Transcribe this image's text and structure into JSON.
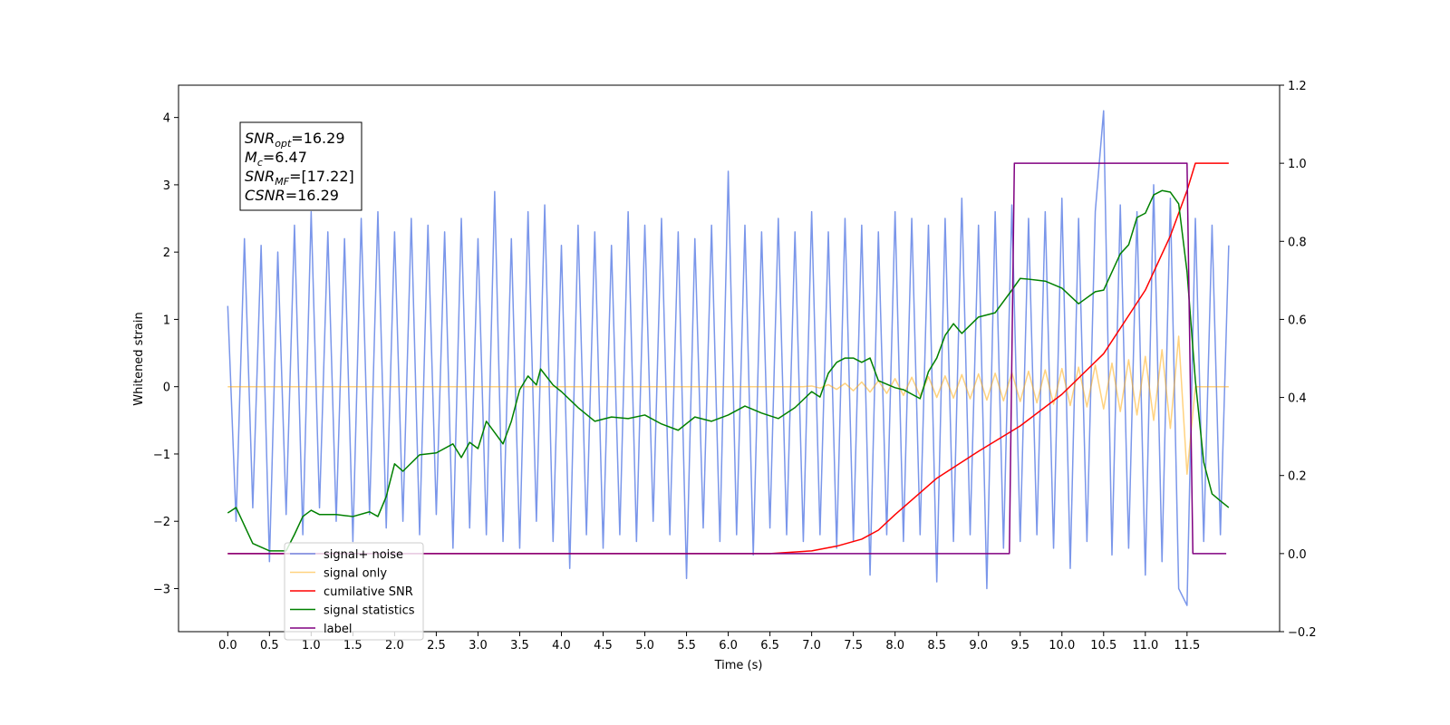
{
  "chart_data": {
    "type": "line",
    "xlabel": "Time (s)",
    "ylabel": "Whitened strain",
    "xlim": [
      -0.59,
      12.61
    ],
    "ylim": [
      -3.64,
      4.48
    ],
    "y2lim": [
      -0.2,
      1.2
    ],
    "xticks": [
      {
        "value": 0,
        "label": "0.0"
      },
      0.5,
      {
        "value": 1,
        "label": "1.0"
      },
      1.5,
      {
        "value": 2,
        "label": "2.0"
      },
      2.5,
      {
        "value": 3,
        "label": "3.0"
      },
      3.5,
      {
        "value": 4,
        "label": "4.0"
      },
      4.5,
      {
        "value": 5,
        "label": "5.0"
      },
      5.5,
      {
        "value": 6,
        "label": "6.0"
      },
      6.5,
      {
        "value": 7,
        "label": "7.0"
      },
      7.5,
      {
        "value": 8,
        "label": "8.0"
      },
      8.5,
      {
        "value": 9,
        "label": "9.0"
      },
      9.5,
      {
        "value": 10,
        "label": "10.0"
      },
      10.5,
      {
        "value": 11,
        "label": "11.0"
      },
      11.5
    ],
    "yticks": [
      {
        "value": -3,
        "label": "−3"
      },
      {
        "value": -2,
        "label": "−2"
      },
      {
        "value": -1,
        "label": "−1"
      },
      0,
      1,
      2,
      3,
      4
    ],
    "y2ticks": [
      {
        "value": -0.2,
        "label": "−0.2"
      },
      {
        "value": 0,
        "label": "0.0"
      },
      0.2,
      0.4,
      0.6,
      0.8,
      {
        "value": 1,
        "label": "1.0"
      },
      1.2
    ],
    "legend": "lower left",
    "annotations": [
      {
        "base": "SNR",
        "sub": "opt",
        "text": "=16.29"
      },
      {
        "base": "M",
        "sub": "c",
        "text": "=6.47"
      },
      {
        "base": "SNR",
        "sub": "MF",
        "text": "=[17.22]"
      },
      {
        "base": "CSNR",
        "sub": "",
        "text": "=16.29"
      }
    ],
    "series": [
      {
        "name": "signal+ noise",
        "color": "#4169e1",
        "alpha": 0.7,
        "x": [
          0,
          0.1,
          0.2,
          0.3,
          0.4,
          0.5,
          0.6,
          0.7,
          0.8,
          0.9,
          1,
          1.1,
          1.2,
          1.3,
          1.4,
          1.5,
          1.6,
          1.7,
          1.8,
          1.9,
          2,
          2.1,
          2.2,
          2.3,
          2.4,
          2.5,
          2.6,
          2.7,
          2.8,
          2.9,
          3,
          3.1,
          3.2,
          3.3,
          3.4,
          3.5,
          3.6,
          3.7,
          3.8,
          3.9,
          4,
          4.1,
          4.2,
          4.3,
          4.4,
          4.5,
          4.6,
          4.7,
          4.8,
          4.9,
          5,
          5.1,
          5.2,
          5.3,
          5.4,
          5.5,
          5.6,
          5.7,
          5.8,
          5.9,
          6,
          6.1,
          6.2,
          6.3,
          6.4,
          6.5,
          6.6,
          6.7,
          6.8,
          6.9,
          7,
          7.1,
          7.2,
          7.3,
          7.4,
          7.5,
          7.6,
          7.7,
          7.8,
          7.9,
          8,
          8.1,
          8.2,
          8.3,
          8.4,
          8.5,
          8.6,
          8.7,
          8.8,
          8.9,
          9,
          9.1,
          9.2,
          9.3,
          9.4,
          9.5,
          9.6,
          9.7,
          9.8,
          9.9,
          10,
          10.1,
          10.2,
          10.3,
          10.4,
          10.5,
          10.6,
          10.7,
          10.8,
          10.9,
          11,
          11.1,
          11.2,
          11.3,
          11.4,
          11.5,
          11.6,
          11.7,
          11.8,
          11.9,
          12
        ],
        "values": [
          1.2,
          -2.0,
          2.2,
          -1.8,
          2.1,
          -2.6,
          2.0,
          -1.9,
          2.4,
          -2.2,
          2.6,
          -1.8,
          2.3,
          -2.0,
          2.2,
          -2.3,
          2.5,
          -1.9,
          2.6,
          -2.1,
          2.3,
          -2.0,
          2.5,
          -2.2,
          2.4,
          -1.9,
          2.3,
          -2.4,
          2.5,
          -2.1,
          2.2,
          -2.2,
          2.9,
          -2.3,
          2.2,
          -2.4,
          2.6,
          -2.0,
          2.7,
          -2.3,
          2.1,
          -2.7,
          2.4,
          -2.2,
          2.3,
          -2.4,
          2.1,
          -2.2,
          2.6,
          -2.3,
          2.4,
          -2.0,
          2.5,
          -2.2,
          2.3,
          -2.85,
          2.2,
          -2.1,
          2.4,
          -2.3,
          3.2,
          -2.2,
          2.4,
          -2.5,
          2.3,
          -2.1,
          2.5,
          -2.2,
          2.3,
          -2.3,
          2.6,
          -2.2,
          2.3,
          -2.4,
          2.5,
          -2.3,
          2.4,
          -2.8,
          2.3,
          -2.2,
          2.6,
          -2.3,
          2.5,
          -2.2,
          2.4,
          -2.9,
          2.5,
          -2.3,
          2.8,
          -2.2,
          2.4,
          -3.0,
          2.6,
          -2.4,
          2.7,
          -2.3,
          2.5,
          -2.2,
          2.6,
          -2.4,
          2.8,
          -2.7,
          2.5,
          -2.3,
          2.6,
          4.1,
          -2.5,
          2.7,
          -2.4,
          2.6,
          -2.8,
          3.0,
          -2.6,
          2.8,
          -3.0,
          -3.25,
          2.5,
          -2.3,
          2.4,
          -2.2,
          2.1
        ]
      },
      {
        "name": "signal only",
        "color": "#ffa500",
        "alpha": 0.5,
        "x": [
          0,
          6.9,
          7,
          7.1,
          7.2,
          7.3,
          7.4,
          7.5,
          7.6,
          7.7,
          7.8,
          7.9,
          8,
          8.1,
          8.2,
          8.3,
          8.4,
          8.5,
          8.6,
          8.7,
          8.8,
          8.9,
          9,
          9.1,
          9.2,
          9.3,
          9.4,
          9.5,
          9.6,
          9.7,
          9.8,
          9.9,
          10,
          10.1,
          10.2,
          10.3,
          10.4,
          10.5,
          10.6,
          10.7,
          10.8,
          10.9,
          11,
          11.1,
          11.2,
          11.3,
          11.4,
          11.5,
          11.6,
          12
        ],
        "values": [
          0,
          0,
          0.01,
          -0.02,
          0.03,
          -0.04,
          0.05,
          -0.06,
          0.07,
          -0.08,
          0.09,
          -0.1,
          0.12,
          -0.13,
          0.14,
          -0.14,
          0.15,
          -0.16,
          0.16,
          -0.17,
          0.18,
          -0.18,
          0.19,
          -0.2,
          0.2,
          -0.21,
          0.21,
          -0.22,
          0.23,
          -0.24,
          0.25,
          -0.26,
          0.27,
          -0.28,
          0.29,
          -0.3,
          0.32,
          -0.33,
          0.35,
          -0.37,
          0.4,
          -0.42,
          0.45,
          -0.5,
          0.55,
          -0.62,
          0.75,
          -1.3,
          0,
          0
        ]
      },
      {
        "name": "cumilative SNR",
        "color": "#ff0000",
        "axis": "y2",
        "x": [
          0,
          6.5,
          7,
          7.3,
          7.6,
          7.8,
          8,
          8.5,
          9,
          9.5,
          10,
          10.5,
          11,
          11.3,
          11.5,
          11.6,
          12
        ],
        "values": [
          0,
          0,
          0.007,
          0.019,
          0.037,
          0.06,
          0.1,
          0.193,
          0.262,
          0.327,
          0.408,
          0.512,
          0.675,
          0.814,
          0.93,
          1,
          1
        ]
      },
      {
        "name": "signal statistics",
        "color": "#008000",
        "axis": "y2",
        "x": [
          0,
          0.1,
          0.3,
          0.5,
          0.7,
          0.8,
          0.9,
          1,
          1.1,
          1.3,
          1.5,
          1.7,
          1.8,
          1.9,
          2,
          2.1,
          2.3,
          2.5,
          2.7,
          2.8,
          2.9,
          3,
          3.1,
          3.3,
          3.4,
          3.5,
          3.6,
          3.7,
          3.75,
          3.9,
          4,
          4.2,
          4.4,
          4.6,
          4.8,
          5,
          5.2,
          5.4,
          5.6,
          5.8,
          6,
          6.2,
          6.4,
          6.6,
          6.8,
          7,
          7.1,
          7.2,
          7.3,
          7.4,
          7.5,
          7.6,
          7.7,
          7.8,
          8,
          8.1,
          8.3,
          8.4,
          8.5,
          8.6,
          8.7,
          8.8,
          9,
          9.2,
          9.4,
          9.5,
          9.6,
          9.8,
          10,
          10.2,
          10.4,
          10.5,
          10.7,
          10.8,
          10.9,
          11,
          11.1,
          11.2,
          11.3,
          11.4,
          11.5,
          11.6,
          11.7,
          11.8,
          11.9,
          12
        ],
        "values": [
          0.104,
          0.118,
          0.026,
          0.007,
          0.007,
          0.049,
          0.095,
          0.111,
          0.1,
          0.1,
          0.095,
          0.107,
          0.095,
          0.146,
          0.23,
          0.211,
          0.253,
          0.258,
          0.281,
          0.246,
          0.285,
          0.269,
          0.339,
          0.281,
          0.339,
          0.42,
          0.455,
          0.432,
          0.473,
          0.432,
          0.415,
          0.374,
          0.339,
          0.35,
          0.346,
          0.355,
          0.332,
          0.316,
          0.35,
          0.339,
          0.355,
          0.378,
          0.36,
          0.346,
          0.374,
          0.415,
          0.401,
          0.462,
          0.49,
          0.501,
          0.501,
          0.49,
          0.501,
          0.443,
          0.425,
          0.42,
          0.397,
          0.466,
          0.501,
          0.559,
          0.589,
          0.564,
          0.606,
          0.617,
          0.675,
          0.705,
          0.703,
          0.698,
          0.68,
          0.64,
          0.671,
          0.675,
          0.768,
          0.791,
          0.861,
          0.872,
          0.919,
          0.93,
          0.926,
          0.896,
          0.722,
          0.443,
          0.234,
          0.153,
          0.135,
          0.118
        ]
      },
      {
        "name": "label",
        "color": "#800080",
        "axis": "y2",
        "x": [
          0,
          9.37,
          9.43,
          11.5,
          11.57,
          11.97
        ],
        "values": [
          0,
          0,
          1,
          1,
          0,
          0
        ]
      }
    ]
  }
}
